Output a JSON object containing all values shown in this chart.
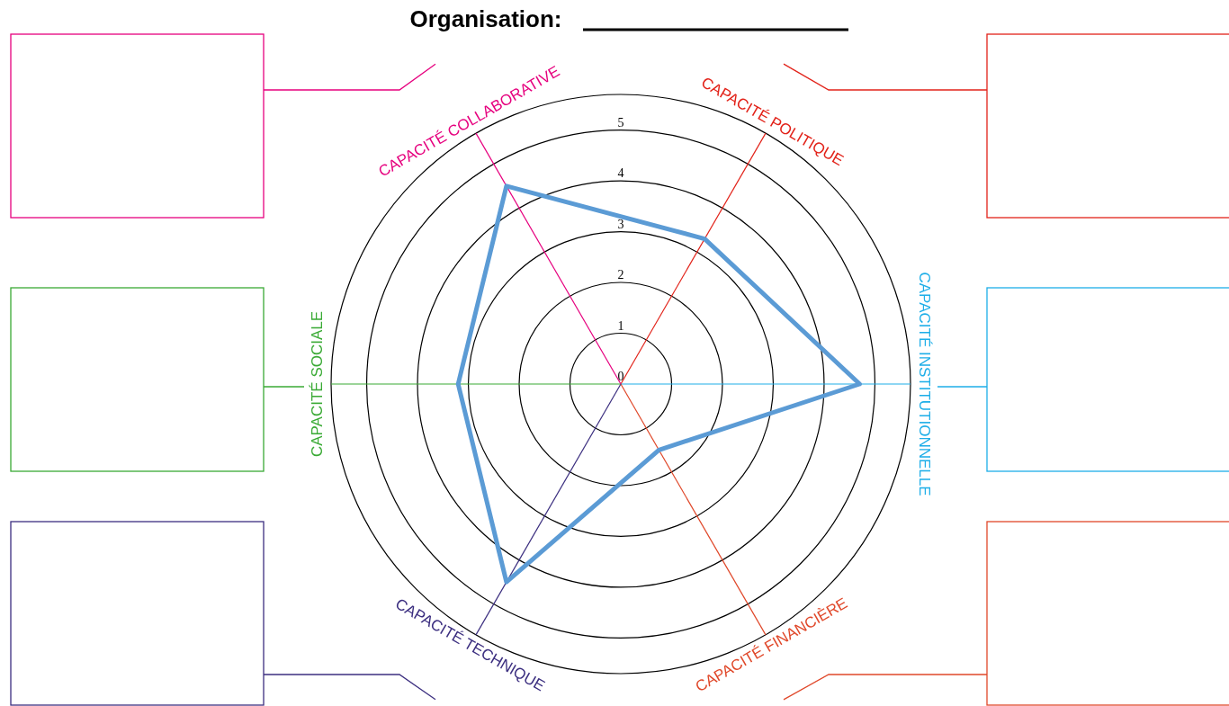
{
  "chart_data": {
    "type": "radar",
    "title": "Organisation:",
    "categories": [
      "CAPACITÉ POLITIQUE",
      "CAPACITÉ INSTITUTIONNELLE",
      "CAPACITÉ FINANCIÈRE",
      "CAPACITÉ TECHNIQUE",
      "CAPACITÉ SOCIALE",
      "CAPACITÉ COLLABORATIVE"
    ],
    "colors": [
      "#e2231a",
      "#1eaee8",
      "#e0482a",
      "#3c2f80",
      "#3aaa35",
      "#e6007e"
    ],
    "series": [
      {
        "color": "#5b9bd5",
        "values": [
          3.3,
          4.7,
          1.5,
          4.5,
          3.2,
          4.5
        ]
      }
    ],
    "ylim": [
      0,
      5.7
    ],
    "yticks": [
      0,
      1,
      2,
      3,
      4,
      5
    ],
    "grid": true
  }
}
